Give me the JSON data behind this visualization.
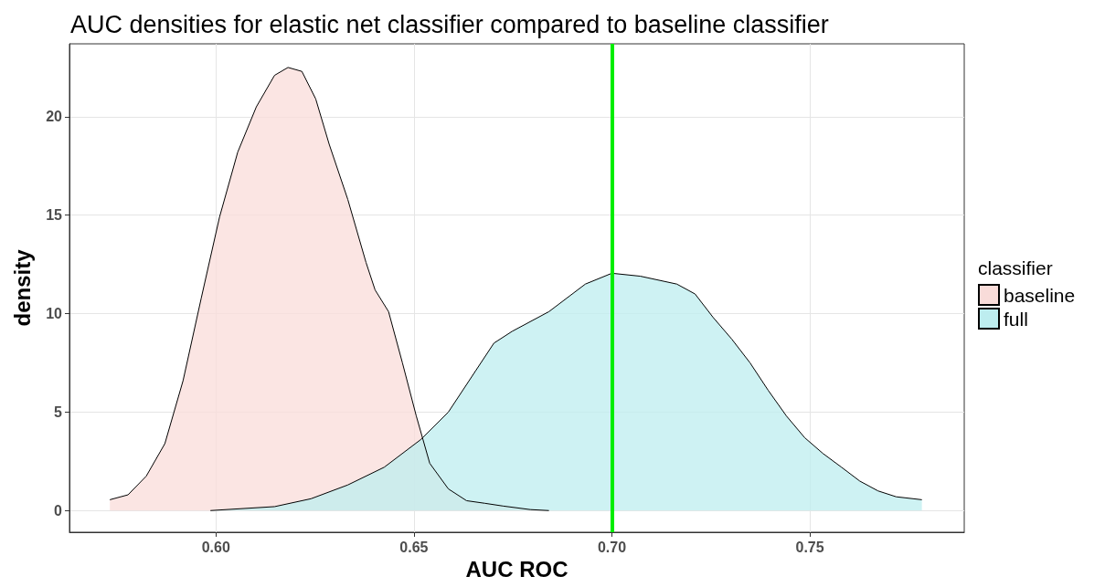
{
  "chart_data": {
    "type": "area",
    "title": "AUC densities for elastic net classifier compared to baseline classifier",
    "xlabel": "AUC ROC",
    "ylabel": "density",
    "legend_title": "classifier",
    "legend": "right",
    "series": [
      {
        "name": "baseline",
        "color": "#f9dcd9",
        "x": [
          0.5732,
          0.5778,
          0.5824,
          0.5871,
          0.5917,
          0.5963,
          0.6009,
          0.6055,
          0.6102,
          0.6148,
          0.6182,
          0.6217,
          0.6252,
          0.6286,
          0.6333,
          0.6379,
          0.6402,
          0.6436,
          0.6471,
          0.6506,
          0.654,
          0.6587,
          0.6633,
          0.6679,
          0.6725,
          0.6794,
          0.6841
        ],
        "values": [
          0.55,
          0.8,
          1.75,
          3.4,
          6.6,
          10.8,
          14.9,
          18.2,
          20.5,
          22.1,
          22.5,
          22.3,
          20.9,
          18.6,
          15.8,
          12.6,
          11.2,
          10.1,
          7.5,
          4.8,
          2.4,
          1.1,
          0.5,
          0.37,
          0.23,
          0.05,
          0
        ]
      },
      {
        "name": "full",
        "color": "#bdedef",
        "x": [
          0.5986,
          0.6148,
          0.624,
          0.6333,
          0.6425,
          0.6517,
          0.6587,
          0.6656,
          0.6702,
          0.6748,
          0.6841,
          0.6933,
          0.7,
          0.7072,
          0.7164,
          0.721,
          0.7256,
          0.7303,
          0.7349,
          0.7395,
          0.7441,
          0.7487,
          0.7533,
          0.758,
          0.7626,
          0.7672,
          0.7718,
          0.7783
        ],
        "values": [
          0,
          0.2,
          0.6,
          1.3,
          2.2,
          3.6,
          5.0,
          7.1,
          8.5,
          9.1,
          10.1,
          11.5,
          12.05,
          11.9,
          11.5,
          11.0,
          9.8,
          8.7,
          7.5,
          6.1,
          4.8,
          3.7,
          2.9,
          2.2,
          1.5,
          1.0,
          0.7,
          0.55
        ]
      }
    ],
    "xlim": [
      0.563,
      0.789
    ],
    "xticks": [
      {
        "value": 0.6,
        "label": "0.60"
      },
      {
        "value": 0.65,
        "label": "0.65"
      },
      {
        "value": 0.7,
        "label": "0.70"
      },
      {
        "value": 0.75,
        "label": "0.75"
      }
    ],
    "ylim": [
      -1.1,
      23.7
    ],
    "yticks": [
      0,
      5,
      10,
      15,
      20
    ],
    "grid": true,
    "ref_lines": [
      {
        "axis": "x",
        "value": 0.7,
        "color": "#00ee00"
      }
    ]
  }
}
